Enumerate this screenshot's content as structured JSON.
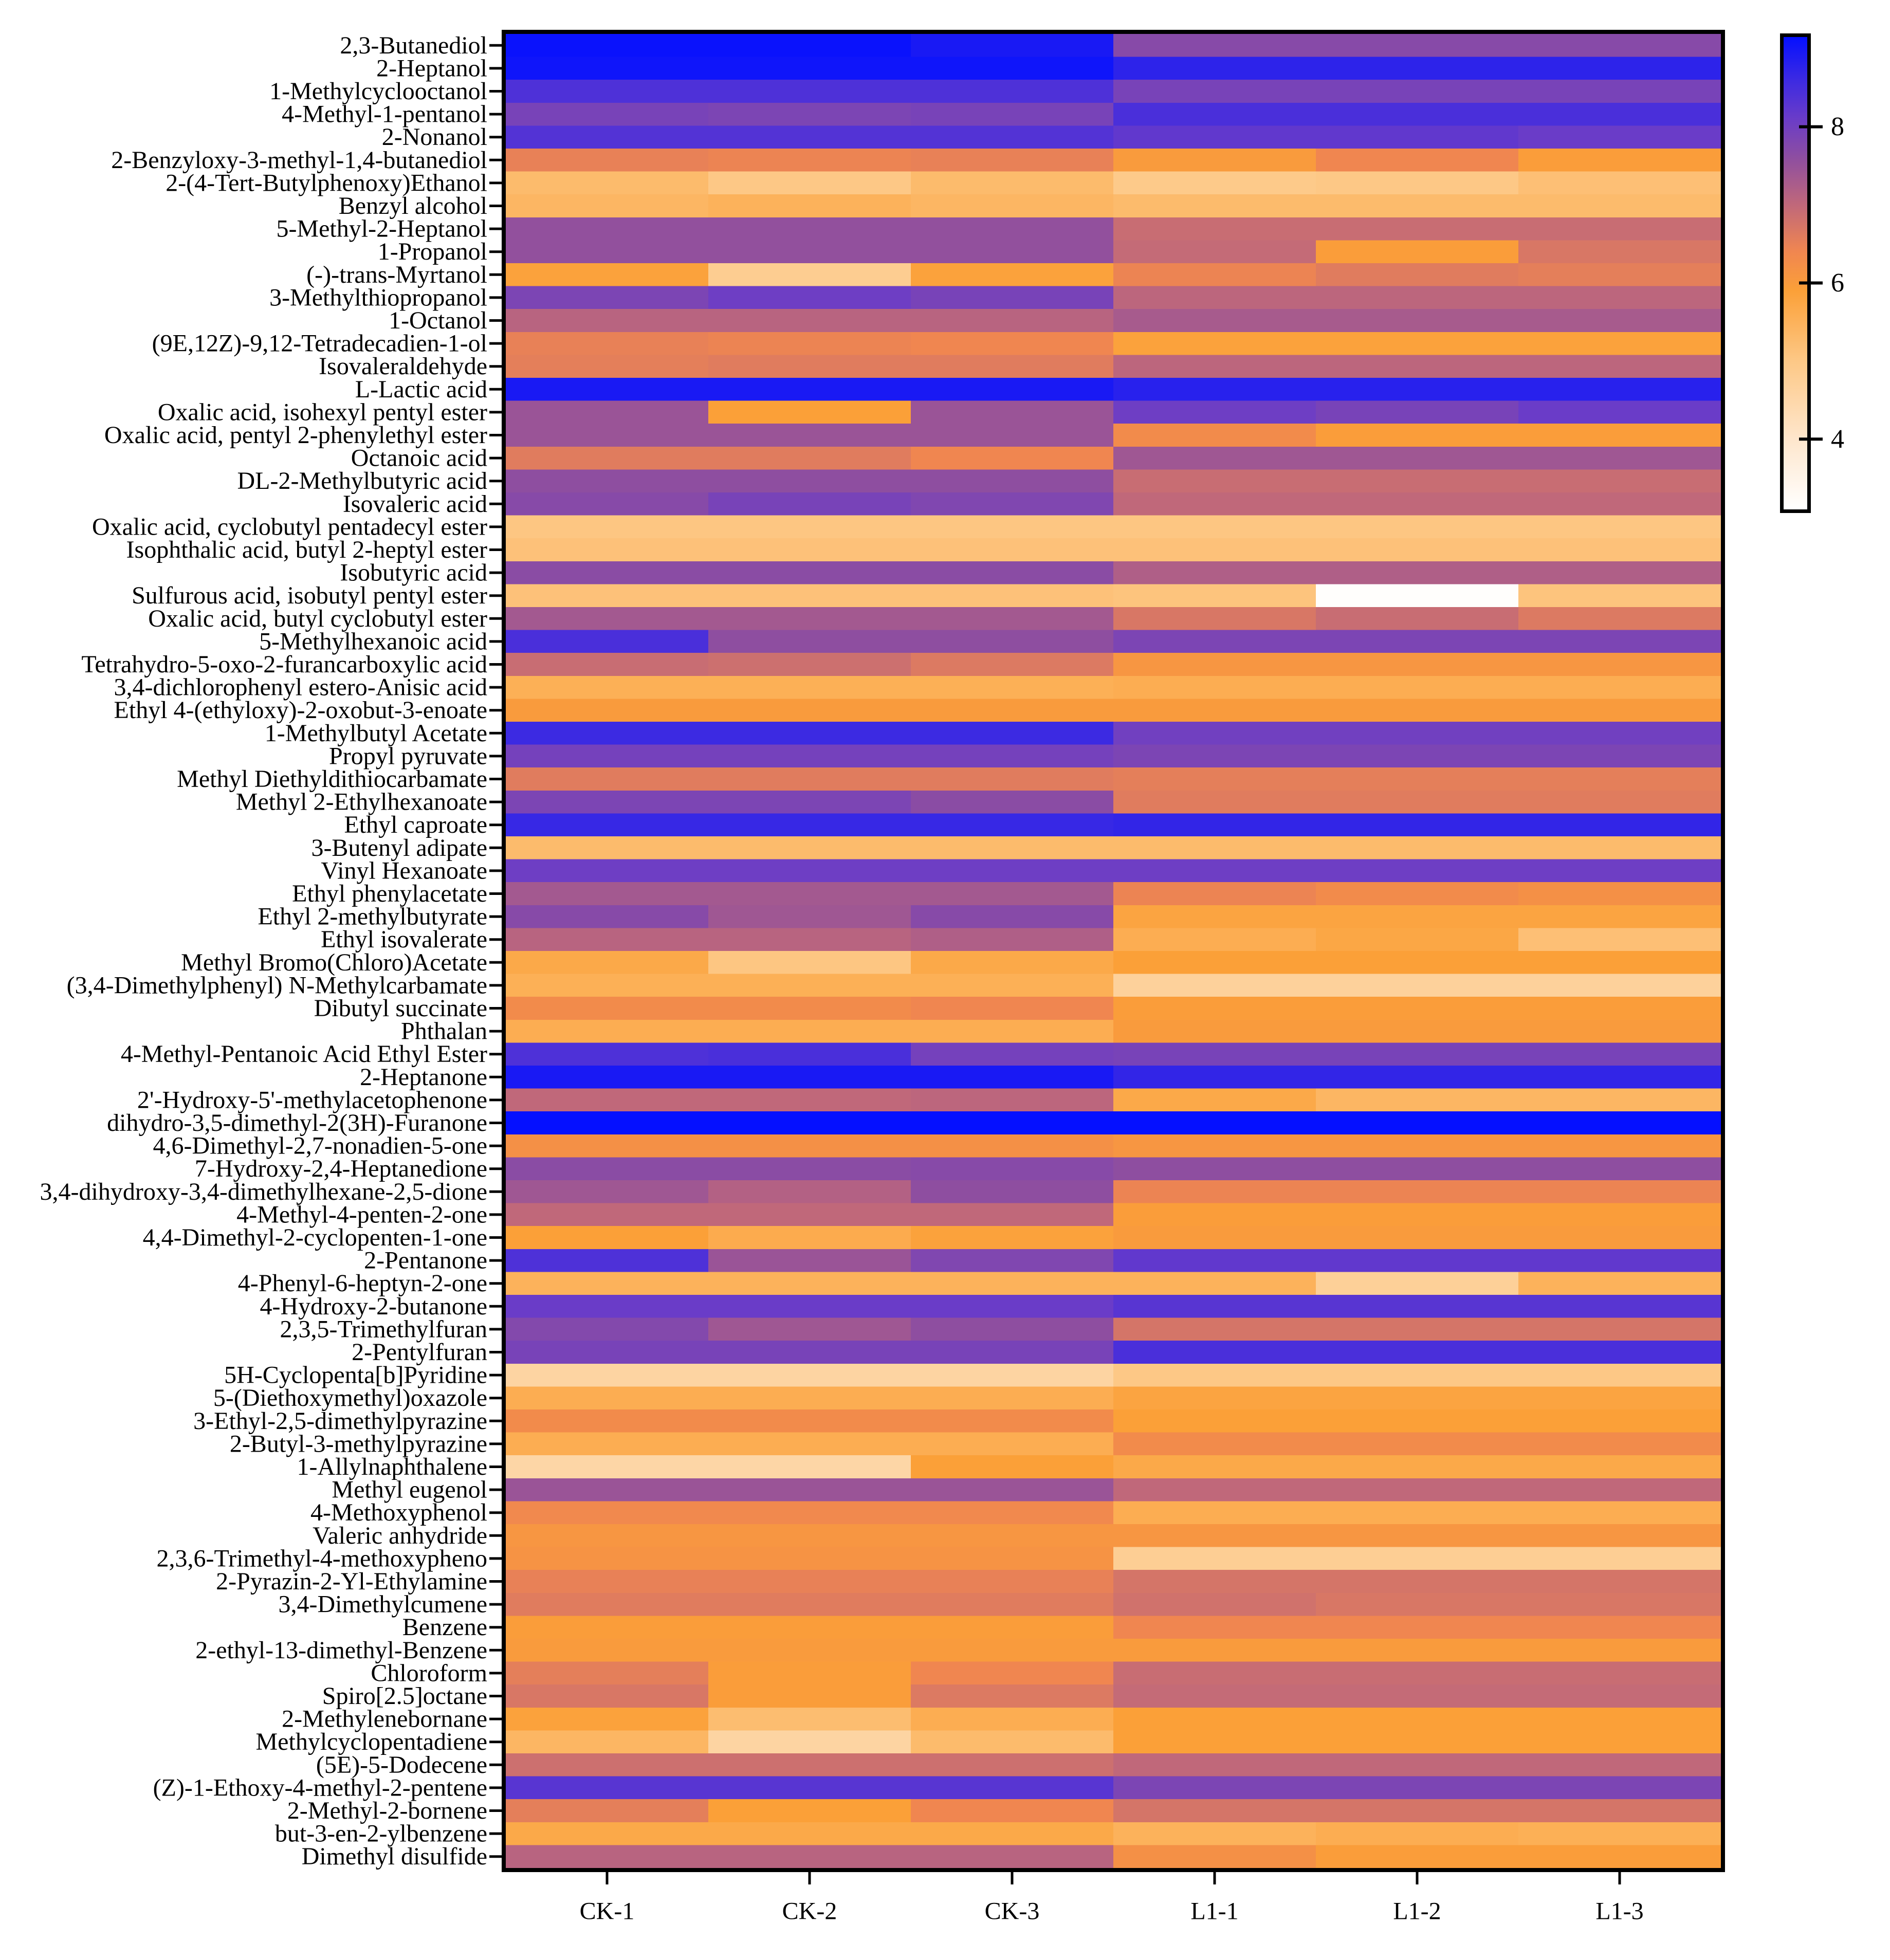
{
  "chart_data": {
    "type": "heatmap",
    "columns": [
      "CK-1",
      "CK-2",
      "CK-3",
      "L1-1",
      "L1-2",
      "L1-3"
    ],
    "rows": [
      "2,3-Butanediol",
      "2-Heptanol",
      "1-Methylcyclooctanol",
      "4-Methyl-1-pentanol",
      "2-Nonanol",
      "2-Benzyloxy-3-methyl-1,4-butanediol",
      "2-(4-Tert-Butylphenoxy)Ethanol",
      "Benzyl alcohol",
      "5-Methyl-2-Heptanol",
      "1-Propanol",
      "(-)-trans-Myrtanol",
      "3-Methylthiopropanol",
      "1-Octanol",
      "(9E,12Z)-9,12-Tetradecadien-1-ol",
      "Isovaleraldehyde",
      "L-Lactic acid",
      "Oxalic acid, isohexyl pentyl ester",
      "Oxalic acid, pentyl 2-phenylethyl ester",
      "Octanoic acid",
      "DL-2-Methylbutyric acid",
      "Isovaleric acid",
      "Oxalic acid, cyclobutyl pentadecyl ester",
      "Isophthalic acid, butyl 2-heptyl ester",
      "Isobutyric acid",
      "Sulfurous acid, isobutyl pentyl ester",
      "Oxalic acid, butyl cyclobutyl ester",
      "5-Methylhexanoic acid",
      "Tetrahydro-5-oxo-2-furancarboxylic acid",
      "3,4-dichlorophenyl estero-Anisic acid",
      "Ethyl 4-(ethyloxy)-2-oxobut-3-enoate",
      "1-Methylbutyl Acetate",
      "Propyl pyruvate",
      "Methyl Diethyldithiocarbamate",
      "Methyl 2-Ethylhexanoate",
      "Ethyl caproate",
      "3-Butenyl adipate",
      "Vinyl Hexanoate",
      "Ethyl phenylacetate",
      "Ethyl 2-methylbutyrate",
      "Ethyl isovalerate",
      "Methyl Bromo(Chloro)Acetate",
      "(3,4-Dimethylphenyl) N-Methylcarbamate",
      "Dibutyl succinate",
      "Phthalan",
      "4-Methyl-Pentanoic Acid Ethyl Ester",
      "2-Heptanone",
      "2'-Hydroxy-5'-methylacetophenone",
      "dihydro-3,5-dimethyl-2(3H)-Furanone",
      "4,6-Dimethyl-2,7-nonadien-5-one",
      "7-Hydroxy-2,4-Heptanedione",
      "3,4-dihydroxy-3,4-dimethylhexane-2,5-dione",
      "4-Methyl-4-penten-2-one",
      "4,4-Dimethyl-2-cyclopenten-1-one",
      "2-Pentanone",
      "4-Phenyl-6-heptyn-2-one",
      "4-Hydroxy-2-butanone",
      "2,3,5-Trimethylfuran",
      "2-Pentylfuran",
      "5H-Cyclopenta[b]Pyridine",
      "5-(Diethoxymethyl)oxazole",
      "3-Ethyl-2,5-dimethylpyrazine",
      "2-Butyl-3-methylpyrazine",
      "1-Allylnaphthalene",
      "Methyl eugenol",
      "4-Methoxyphenol",
      "Valeric anhydride",
      "2,3,6-Trimethyl-4-methoxypheno",
      "2-Pyrazin-2-Yl-Ethylamine",
      "3,4-Dimethylcumene",
      "Benzene",
      "2-ethyl-13-dimethyl-Benzene",
      "Chloroform",
      "Spiro[2.5]octane",
      "2-Methylenebornane",
      "Methylcyclopentadiene",
      "(5E)-5-Dodecene",
      "(Z)-1-Ethoxy-4-methyl-2-pentene",
      "2-Methyl-2-bornene",
      "but-3-en-2-ylbenzene",
      "Dimethyl disulfide"
    ],
    "values": [
      [
        9.1,
        9.1,
        8.95,
        7.7,
        7.7,
        7.7
      ],
      [
        9.05,
        9.05,
        9.05,
        8.75,
        8.75,
        8.75
      ],
      [
        8.4,
        8.4,
        8.4,
        7.9,
        7.9,
        7.9
      ],
      [
        7.9,
        7.85,
        7.9,
        8.45,
        8.45,
        8.45
      ],
      [
        8.35,
        8.35,
        8.35,
        8.2,
        8.2,
        8.1
      ],
      [
        6.5,
        6.45,
        6.5,
        6.0,
        6.4,
        5.95
      ],
      [
        5.3,
        5.0,
        5.3,
        4.95,
        5.0,
        5.2
      ],
      [
        5.4,
        5.5,
        5.4,
        5.3,
        5.3,
        5.3
      ],
      [
        7.55,
        7.55,
        7.55,
        6.9,
        6.9,
        6.9
      ],
      [
        7.55,
        7.55,
        7.55,
        6.95,
        5.95,
        6.7
      ],
      [
        5.85,
        4.85,
        5.85,
        6.45,
        6.6,
        6.55
      ],
      [
        7.85,
        8.05,
        7.9,
        7.05,
        7.05,
        7.05
      ],
      [
        7.1,
        7.1,
        7.1,
        7.3,
        7.3,
        7.3
      ],
      [
        6.5,
        6.45,
        6.4,
        5.85,
        5.85,
        5.85
      ],
      [
        6.55,
        6.6,
        6.6,
        7.05,
        7.05,
        7.05
      ],
      [
        8.95,
        8.95,
        8.95,
        8.8,
        8.8,
        8.8
      ],
      [
        7.45,
        5.9,
        7.45,
        8.05,
        7.9,
        8.1
      ],
      [
        7.45,
        7.45,
        7.45,
        6.3,
        5.95,
        5.95
      ],
      [
        6.6,
        6.6,
        6.4,
        7.4,
        7.4,
        7.4
      ],
      [
        7.6,
        7.6,
        7.6,
        6.9,
        6.9,
        6.9
      ],
      [
        7.7,
        7.9,
        7.8,
        7.0,
        7.0,
        7.0
      ],
      [
        5.05,
        5.05,
        5.05,
        5.05,
        5.05,
        5.05
      ],
      [
        5.15,
        5.15,
        5.15,
        5.15,
        5.15,
        5.15
      ],
      [
        7.65,
        7.65,
        7.65,
        7.2,
        7.2,
        7.2
      ],
      [
        5.15,
        5.15,
        5.15,
        5.1,
        3.15,
        5.1
      ],
      [
        7.35,
        7.35,
        7.35,
        6.7,
        6.9,
        6.65
      ],
      [
        8.45,
        7.6,
        7.6,
        7.85,
        7.85,
        7.85
      ],
      [
        6.9,
        6.85,
        6.65,
        6.1,
        6.1,
        6.1
      ],
      [
        5.55,
        5.55,
        5.55,
        5.6,
        5.6,
        5.6
      ],
      [
        6.0,
        6.0,
        6.0,
        6.0,
        6.0,
        6.0
      ],
      [
        8.6,
        8.6,
        8.6,
        8.0,
        8.0,
        8.0
      ],
      [
        7.95,
        7.95,
        7.95,
        7.85,
        7.85,
        7.85
      ],
      [
        6.6,
        6.6,
        6.6,
        6.55,
        6.55,
        6.55
      ],
      [
        7.85,
        7.85,
        7.65,
        6.6,
        6.6,
        6.6
      ],
      [
        8.65,
        8.65,
        8.65,
        8.7,
        8.7,
        8.7
      ],
      [
        5.3,
        5.3,
        5.3,
        5.3,
        5.3,
        5.3
      ],
      [
        8.05,
        8.05,
        8.05,
        8.05,
        8.05,
        8.05
      ],
      [
        7.35,
        7.35,
        7.35,
        6.45,
        6.3,
        6.2
      ],
      [
        7.7,
        7.4,
        7.7,
        5.8,
        5.8,
        5.8
      ],
      [
        7.1,
        7.1,
        7.2,
        5.6,
        5.75,
        5.2
      ],
      [
        5.7,
        5.05,
        5.7,
        5.9,
        5.9,
        5.9
      ],
      [
        5.55,
        5.55,
        5.55,
        4.7,
        4.7,
        4.7
      ],
      [
        6.3,
        6.3,
        6.4,
        5.95,
        5.95,
        5.95
      ],
      [
        5.6,
        5.6,
        5.6,
        6.0,
        6.0,
        6.0
      ],
      [
        8.4,
        8.45,
        7.95,
        7.9,
        7.9,
        7.9
      ],
      [
        8.95,
        8.95,
        8.95,
        8.7,
        8.7,
        8.7
      ],
      [
        7.0,
        7.0,
        7.05,
        5.7,
        5.4,
        5.4
      ],
      [
        9.15,
        9.15,
        9.15,
        9.15,
        9.15,
        9.15
      ],
      [
        6.2,
        6.2,
        6.2,
        6.1,
        6.1,
        6.1
      ],
      [
        7.65,
        7.65,
        7.7,
        7.6,
        7.6,
        7.6
      ],
      [
        7.4,
        7.15,
        7.6,
        6.45,
        6.45,
        6.45
      ],
      [
        7.0,
        7.0,
        7.0,
        5.95,
        5.95,
        5.95
      ],
      [
        5.9,
        5.65,
        5.85,
        6.0,
        6.0,
        6.0
      ],
      [
        8.4,
        7.45,
        7.8,
        8.2,
        8.2,
        8.2
      ],
      [
        5.5,
        5.5,
        5.5,
        5.5,
        4.75,
        5.5
      ],
      [
        8.1,
        8.1,
        8.1,
        8.3,
        8.3,
        8.3
      ],
      [
        7.75,
        7.4,
        7.6,
        6.75,
        6.75,
        6.75
      ],
      [
        7.9,
        7.9,
        7.9,
        8.45,
        8.45,
        8.45
      ],
      [
        4.6,
        4.6,
        4.6,
        5.0,
        5.0,
        5.0
      ],
      [
        5.6,
        5.6,
        5.6,
        5.8,
        5.8,
        5.8
      ],
      [
        6.3,
        6.3,
        6.3,
        5.9,
        5.9,
        5.9
      ],
      [
        5.6,
        5.6,
        5.6,
        6.3,
        6.3,
        6.3
      ],
      [
        4.55,
        4.55,
        5.9,
        5.7,
        5.7,
        5.7
      ],
      [
        7.45,
        7.45,
        7.45,
        7.0,
        7.0,
        7.0
      ],
      [
        6.35,
        6.35,
        6.35,
        5.6,
        5.6,
        5.6
      ],
      [
        6.1,
        6.1,
        6.1,
        6.1,
        6.1,
        6.1
      ],
      [
        6.15,
        6.15,
        6.15,
        4.8,
        4.8,
        4.8
      ],
      [
        6.5,
        6.5,
        6.5,
        6.75,
        6.75,
        6.75
      ],
      [
        6.6,
        6.6,
        6.6,
        6.8,
        6.7,
        6.7
      ],
      [
        5.95,
        5.95,
        5.95,
        6.4,
        6.4,
        6.4
      ],
      [
        6.0,
        6.0,
        6.0,
        6.0,
        6.0,
        6.0
      ],
      [
        6.55,
        5.95,
        6.4,
        6.9,
        6.9,
        6.9
      ],
      [
        6.7,
        5.95,
        6.65,
        6.95,
        6.95,
        6.95
      ],
      [
        5.85,
        5.25,
        5.6,
        5.9,
        5.9,
        5.9
      ],
      [
        5.4,
        4.6,
        5.3,
        5.9,
        5.9,
        5.9
      ],
      [
        6.85,
        6.85,
        6.85,
        7.0,
        7.0,
        7.0
      ],
      [
        8.3,
        8.3,
        8.3,
        7.85,
        7.85,
        7.85
      ],
      [
        6.55,
        5.9,
        6.4,
        6.75,
        6.75,
        6.75
      ],
      [
        5.7,
        5.7,
        5.7,
        5.5,
        5.6,
        5.55
      ],
      [
        7.1,
        7.1,
        7.1,
        6.2,
        5.95,
        5.95
      ]
    ],
    "colorbar": {
      "min": 3.1,
      "max": 9.15,
      "ticks": [
        8,
        6,
        4
      ]
    },
    "colorscale": [
      {
        "value": 3.1,
        "color": "#FFFFFF"
      },
      {
        "value": 4.0,
        "color": "#FEE6CC"
      },
      {
        "value": 5.0,
        "color": "#FDC886"
      },
      {
        "value": 5.9,
        "color": "#FBA038"
      },
      {
        "value": 6.4,
        "color": "#F08650"
      },
      {
        "value": 7.0,
        "color": "#C0687A"
      },
      {
        "value": 7.6,
        "color": "#8E4EA0"
      },
      {
        "value": 8.1,
        "color": "#6A3CC8"
      },
      {
        "value": 8.6,
        "color": "#3C2AE2"
      },
      {
        "value": 9.15,
        "color": "#0510FF"
      }
    ]
  }
}
